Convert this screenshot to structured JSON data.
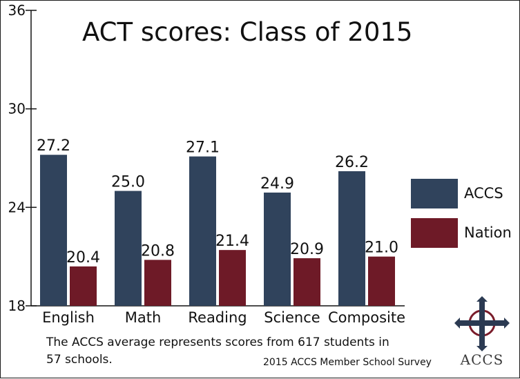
{
  "chart_data": {
    "type": "bar",
    "title": "ACT scores: Class of 2015",
    "categories": [
      "English",
      "Math",
      "Reading",
      "Science",
      "Composite"
    ],
    "series": [
      {
        "name": "ACCS",
        "values": [
          27.2,
          25.0,
          27.1,
          24.9,
          26.2
        ],
        "labels": [
          "27.2",
          "25.0",
          "27.1",
          "24.9",
          "26.2"
        ],
        "color": "#30435c"
      },
      {
        "name": "Nation",
        "values": [
          20.4,
          20.8,
          21.4,
          20.9,
          21.0
        ],
        "labels": [
          "20.4",
          "20.8",
          "21.4",
          "20.9",
          "21.0"
        ],
        "color": "#6e1a27"
      }
    ],
    "yticks": [
      "18",
      "24",
      "30",
      "36"
    ],
    "ylim": [
      18,
      36
    ],
    "xlabel": "",
    "ylabel": "",
    "grid": false,
    "legend_position": "right"
  },
  "note": "The ACCS average represents scores from 617 students in 57 schools.",
  "source": "2015 ACCS Member School Survey",
  "logo": {
    "text": "ACCS",
    "icon": "cross-icon"
  }
}
